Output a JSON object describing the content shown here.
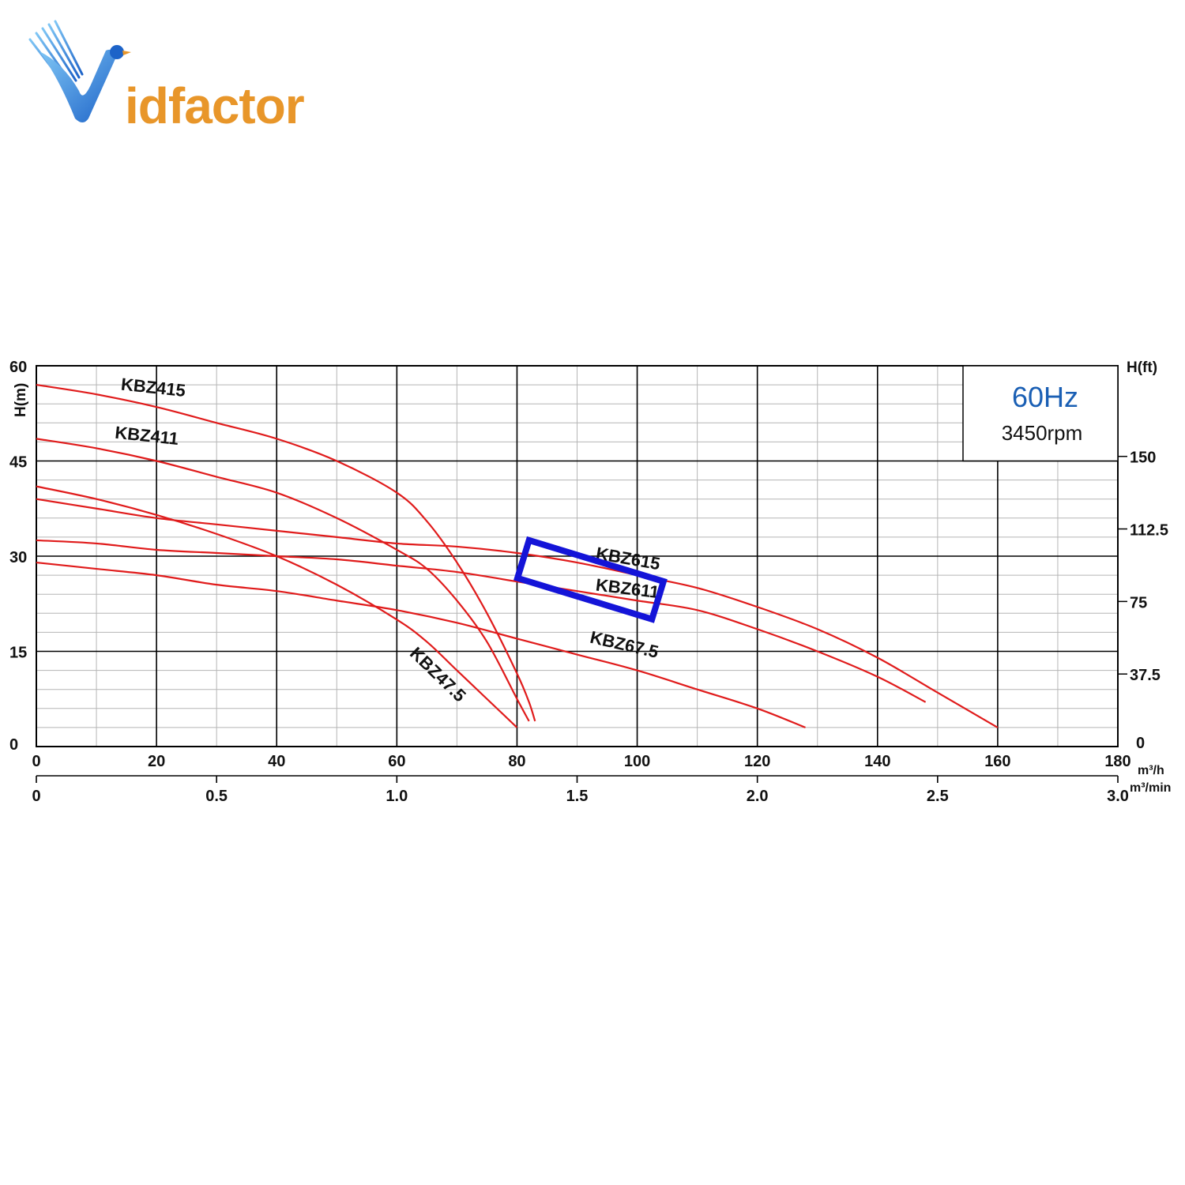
{
  "logo": {
    "text": "Vidfactor",
    "text_after_v": "idfactor"
  },
  "colors": {
    "curve": "#e01b1b",
    "highlight": "#1414d8",
    "major_grid": "#000000",
    "minor_grid": "#b5b5b5",
    "hz_text": "#1a5fb4",
    "logo_blue": "#1d63c8",
    "logo_orange": "#e8962a"
  },
  "chart_data": {
    "type": "line",
    "info_box": {
      "frequency": "60Hz",
      "speed": "3450rpm"
    },
    "x_axis": {
      "unit": "m³/h",
      "range": [
        0,
        180
      ],
      "ticks": [
        "0",
        "20",
        "40",
        "60",
        "80",
        "100",
        "120",
        "140",
        "160",
        "180"
      ]
    },
    "x2_axis": {
      "unit": "m³/min",
      "range": [
        0,
        3.0
      ],
      "ticks": [
        "0",
        "0.5",
        "1.0",
        "1.5",
        "2.0",
        "2.5",
        "3.0"
      ]
    },
    "y_axis": {
      "label": "H(m)",
      "range": [
        0,
        60
      ],
      "ticks": [
        "0",
        "15",
        "30",
        "45",
        "60"
      ]
    },
    "y2_axis": {
      "label": "H(ft)",
      "ticks": [
        "0",
        "37.5",
        "75",
        "112.5",
        "150"
      ]
    },
    "grid": true,
    "highlighted_series": "KBZ615",
    "series": [
      {
        "name": "KBZ415",
        "points": [
          [
            0,
            57
          ],
          [
            10,
            55.5
          ],
          [
            20,
            53.5
          ],
          [
            30,
            51
          ],
          [
            40,
            48.5
          ],
          [
            50,
            45
          ],
          [
            60,
            40
          ],
          [
            65,
            35.5
          ],
          [
            70,
            29
          ],
          [
            75,
            21
          ],
          [
            80,
            11.5
          ],
          [
            82,
            7
          ],
          [
            83,
            4
          ]
        ]
      },
      {
        "name": "KBZ411",
        "points": [
          [
            0,
            48.5
          ],
          [
            10,
            47
          ],
          [
            20,
            45
          ],
          [
            30,
            42.5
          ],
          [
            40,
            40
          ],
          [
            50,
            36
          ],
          [
            60,
            31
          ],
          [
            65,
            28
          ],
          [
            70,
            23
          ],
          [
            75,
            16.5
          ],
          [
            80,
            7.5
          ],
          [
            82,
            4
          ]
        ]
      },
      {
        "name": "KBZ47.5",
        "points": [
          [
            0,
            41
          ],
          [
            10,
            39
          ],
          [
            20,
            36.5
          ],
          [
            30,
            33.5
          ],
          [
            40,
            30
          ],
          [
            50,
            25.5
          ],
          [
            60,
            20
          ],
          [
            65,
            16.5
          ],
          [
            70,
            12
          ],
          [
            75,
            7.5
          ],
          [
            80,
            3
          ]
        ]
      },
      {
        "name": "KBZ615",
        "points": [
          [
            0,
            39
          ],
          [
            10,
            37.5
          ],
          [
            20,
            36
          ],
          [
            30,
            35
          ],
          [
            40,
            34
          ],
          [
            50,
            33
          ],
          [
            60,
            32
          ],
          [
            70,
            31.5
          ],
          [
            80,
            30.5
          ],
          [
            90,
            29
          ],
          [
            100,
            27
          ],
          [
            110,
            25
          ],
          [
            120,
            22
          ],
          [
            130,
            18.5
          ],
          [
            140,
            14
          ],
          [
            150,
            8.5
          ],
          [
            160,
            3
          ]
        ]
      },
      {
        "name": "KBZ611",
        "points": [
          [
            0,
            32.5
          ],
          [
            10,
            32
          ],
          [
            20,
            31
          ],
          [
            30,
            30.5
          ],
          [
            40,
            30
          ],
          [
            50,
            29.5
          ],
          [
            60,
            28.5
          ],
          [
            70,
            27.5
          ],
          [
            80,
            26
          ],
          [
            90,
            24.5
          ],
          [
            100,
            23
          ],
          [
            110,
            21.5
          ],
          [
            120,
            18.5
          ],
          [
            130,
            15
          ],
          [
            140,
            11
          ],
          [
            148,
            7
          ]
        ]
      },
      {
        "name": "KBZ67.5",
        "points": [
          [
            0,
            29
          ],
          [
            10,
            28
          ],
          [
            20,
            27
          ],
          [
            30,
            25.5
          ],
          [
            40,
            24.5
          ],
          [
            50,
            23
          ],
          [
            60,
            21.5
          ],
          [
            70,
            19.5
          ],
          [
            80,
            17
          ],
          [
            90,
            14.5
          ],
          [
            100,
            12
          ],
          [
            110,
            9
          ],
          [
            120,
            6
          ],
          [
            128,
            3
          ]
        ]
      }
    ]
  }
}
